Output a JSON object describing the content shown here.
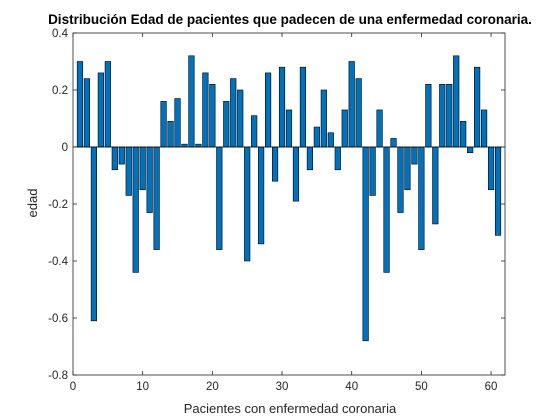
{
  "colors": {
    "bar_fill": "#0072BD",
    "bar_edge": "#000000",
    "axis": "#262626",
    "background": "#ffffff"
  },
  "chart_data": {
    "type": "bar",
    "title": "Distribución Edad de pacientes que padecen de una enfermedad coronaria.",
    "xlabel": "Pacientes con enfermedad coronaria",
    "ylabel": "edad",
    "xlim": [
      0,
      62
    ],
    "ylim": [
      -0.8,
      0.4
    ],
    "xticks": [
      0,
      10,
      20,
      30,
      40,
      50,
      60
    ],
    "yticks": [
      0.4,
      0.2,
      0,
      -0.2,
      -0.4,
      -0.6,
      -0.8
    ],
    "grid": false,
    "legend": "none",
    "x": [
      1,
      2,
      3,
      4,
      5,
      6,
      7,
      8,
      9,
      10,
      11,
      12,
      13,
      14,
      15,
      16,
      17,
      18,
      19,
      20,
      21,
      22,
      23,
      24,
      25,
      26,
      27,
      28,
      29,
      30,
      31,
      32,
      33,
      34,
      35,
      36,
      37,
      38,
      39,
      40,
      41,
      42,
      43,
      44,
      45,
      46,
      47,
      48,
      49,
      50,
      51,
      52,
      53,
      54,
      55,
      56,
      57,
      58,
      59,
      60,
      61
    ],
    "values": [
      0.3,
      0.24,
      -0.61,
      0.26,
      0.3,
      -0.08,
      -0.06,
      -0.17,
      -0.44,
      -0.15,
      -0.23,
      -0.36,
      0.16,
      0.09,
      0.17,
      0.01,
      0.32,
      0.01,
      0.26,
      0.22,
      -0.36,
      0.16,
      0.24,
      0.2,
      -0.4,
      0.11,
      -0.34,
      0.26,
      -0.12,
      0.28,
      0.13,
      -0.19,
      0.28,
      -0.08,
      0.07,
      0.2,
      0.05,
      -0.08,
      0.13,
      0.3,
      0.24,
      -0.68,
      -0.17,
      0.13,
      -0.44,
      0.03,
      -0.23,
      -0.15,
      -0.06,
      -0.36,
      0.22,
      -0.27,
      0.22,
      0.22,
      0.32,
      0.09,
      -0.02,
      0.28,
      0.13,
      -0.15,
      -0.31
    ]
  }
}
